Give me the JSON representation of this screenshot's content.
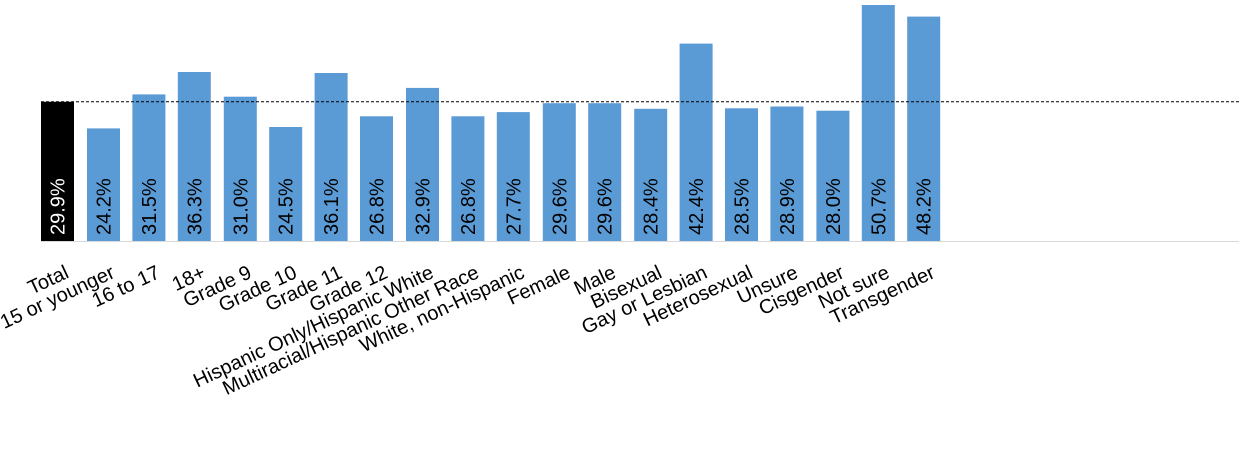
{
  "chart_data": {
    "type": "bar",
    "value_format": "percent_1dp",
    "reference_line": {
      "value": 29.9,
      "style": "dashed"
    },
    "colors": {
      "total": "#000000",
      "bars": "#5B9BD5",
      "reference": "#000000",
      "label_on_total": "#ffffff",
      "label_on_bar": "#000000"
    },
    "groups": [
      {
        "bars": [
          {
            "label": "Total",
            "value": 29.9,
            "highlight": true
          }
        ]
      },
      {
        "bars": [
          {
            "label": "15 or younger",
            "value": 24.2
          },
          {
            "label": "16 to 17",
            "value": 31.5
          },
          {
            "label": "18+",
            "value": 36.3
          }
        ]
      },
      {
        "bars": [
          {
            "label": "Grade 9",
            "value": 31.0
          },
          {
            "label": "Grade 10",
            "value": 24.5
          },
          {
            "label": "Grade 11",
            "value": 36.1
          },
          {
            "label": "Grade 12",
            "value": 26.8
          }
        ]
      },
      {
        "bars": [
          {
            "label": "Hispanic Only/Hispanic White",
            "value": 32.9
          },
          {
            "label": "Multiracial/Hispanic Other Race",
            "value": 26.8
          },
          {
            "label": "White, non-Hispanic",
            "value": 27.7
          }
        ]
      },
      {
        "bars": [
          {
            "label": "Female",
            "value": 29.6
          },
          {
            "label": "Male",
            "value": 29.6
          }
        ]
      },
      {
        "bars": [
          {
            "label": "Bisexual",
            "value": 28.4
          },
          {
            "label": "Gay or Lesbian",
            "value": 42.4
          },
          {
            "label": "Heterosexual",
            "value": 28.5
          },
          {
            "label": "Unsure",
            "value": 28.9
          }
        ]
      },
      {
        "bars": [
          {
            "label": "Cisgender",
            "value": 28.0
          },
          {
            "label": "Not sure",
            "value": 50.7
          },
          {
            "label": "Transgender",
            "value": 48.2
          }
        ]
      }
    ]
  }
}
